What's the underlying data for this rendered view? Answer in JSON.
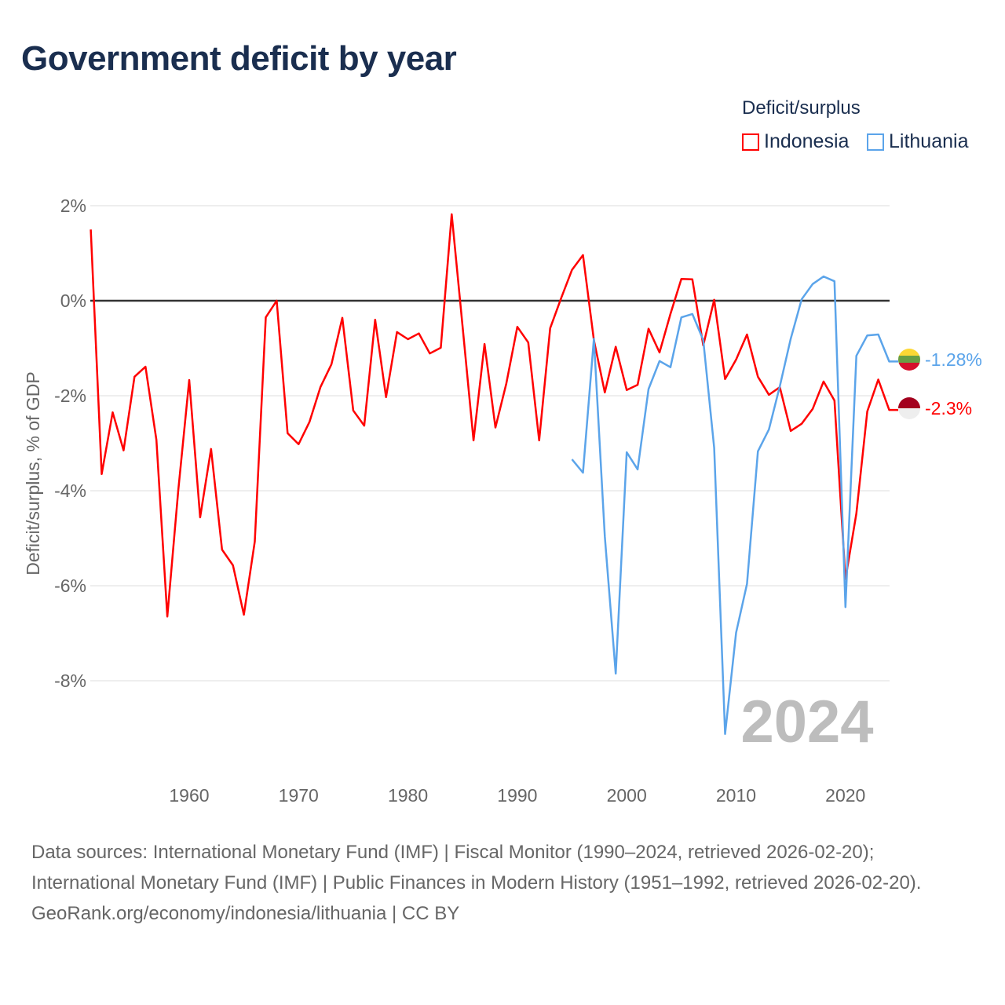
{
  "title": "Government deficit by year",
  "legend": {
    "title": "Deficit/surplus",
    "items": [
      {
        "label": "Indonesia",
        "color": "#ff0000"
      },
      {
        "label": "Lithuania",
        "color": "#5ba4ea"
      }
    ]
  },
  "footer": {
    "sources": "Data sources: International Monetary Fund (IMF) | Fiscal Monitor (1990–2024, retrieved 2026-02-20); International Monetary Fund (IMF) | Public Finances in Modern History (1951–1992, retrieved 2026-02-20).",
    "credit": "GeoRank.org/economy/indonesia/lithuania | CC BY"
  },
  "chart_data": {
    "type": "line",
    "title": "Government deficit by year",
    "xlabel": "",
    "ylabel": "Deficit/surplus, % of GDP",
    "xlim": [
      1951,
      2024
    ],
    "ylim": [
      -9.5,
      2.2
    ],
    "x_ticks": [
      1960,
      1970,
      1980,
      1990,
      2000,
      2010,
      2020
    ],
    "y_ticks": [
      {
        "v": 2,
        "label": "2%"
      },
      {
        "v": 0,
        "label": "0%"
      },
      {
        "v": -2,
        "label": "-2%"
      },
      {
        "v": -4,
        "label": "-4%"
      },
      {
        "v": -6,
        "label": "-6%"
      },
      {
        "v": -8,
        "label": "-8%"
      }
    ],
    "year_watermark": "2024",
    "series": [
      {
        "name": "Indonesia",
        "color": "#ff0000",
        "end_label": "-2.3%",
        "start_year": 1951,
        "values": [
          1.5,
          -3.65,
          -2.35,
          -3.15,
          -1.6,
          -1.39,
          -2.93,
          -6.65,
          -4.0,
          -1.67,
          -4.56,
          -3.12,
          -5.24,
          -5.57,
          -6.61,
          -5.07,
          -0.35,
          0.0,
          -2.79,
          -3.02,
          -2.55,
          -1.82,
          -1.34,
          -0.36,
          -2.31,
          -2.63,
          -0.4,
          -2.03,
          -0.66,
          -0.81,
          -0.69,
          -1.11,
          -0.99,
          1.82,
          -0.55,
          -2.94,
          -0.91,
          -2.67,
          -1.74,
          -0.55,
          -0.88,
          -2.94,
          -0.58,
          0.05,
          0.65,
          0.96,
          -0.83,
          -1.93,
          -0.97,
          -1.88,
          -1.77,
          -0.59,
          -1.09,
          -0.28,
          0.46,
          0.45,
          -0.94,
          0.02,
          -1.65,
          -1.24,
          -0.71,
          -1.6,
          -1.98,
          -1.82,
          -2.74,
          -2.59,
          -2.28,
          -1.7,
          -2.1,
          -5.86,
          -4.48,
          -2.33,
          -1.66,
          -2.3
        ]
      },
      {
        "name": "Lithuania",
        "color": "#5ba4ea",
        "end_label": "-1.28%",
        "start_year": 1995,
        "values": [
          -3.34,
          -3.62,
          -0.8,
          -4.96,
          -7.85,
          -3.19,
          -3.55,
          -1.86,
          -1.27,
          -1.4,
          -0.35,
          -0.28,
          -0.83,
          -3.1,
          -9.12,
          -6.99,
          -5.96,
          -3.17,
          -2.71,
          -1.8,
          -0.8,
          0.03,
          0.35,
          0.51,
          0.41,
          -6.45,
          -1.16,
          -0.73,
          -0.71,
          -1.28
        ]
      }
    ]
  }
}
